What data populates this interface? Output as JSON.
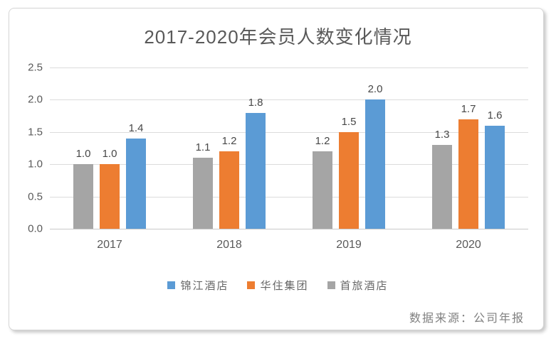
{
  "chart_data": {
    "type": "bar",
    "title": "2017-2020年会员人数变化情况",
    "categories": [
      "2017",
      "2018",
      "2019",
      "2020"
    ],
    "series": [
      {
        "name": "首旅酒店",
        "color": "#A5A5A5",
        "values": [
          1.0,
          1.1,
          1.2,
          1.3
        ]
      },
      {
        "name": "华住集团",
        "color": "#ED7D31",
        "values": [
          1.0,
          1.2,
          1.5,
          1.7
        ]
      },
      {
        "name": "锦江酒店",
        "color": "#5B9BD5",
        "values": [
          1.4,
          1.8,
          2.0,
          1.6
        ]
      }
    ],
    "legend": [
      {
        "name": "锦江酒店",
        "color": "#5B9BD5"
      },
      {
        "name": "华住集团",
        "color": "#ED7D31"
      },
      {
        "name": "首旅酒店",
        "color": "#A5A5A5"
      }
    ],
    "y_ticks": [
      "0.0",
      "0.5",
      "1.0",
      "1.5",
      "2.0",
      "2.5"
    ],
    "ylim": [
      0,
      2.5
    ],
    "grid": true,
    "legend_position": "bottom",
    "xlabel": "",
    "ylabel": ""
  },
  "source_note": "数据来源：公司年报",
  "colors": {
    "grid": "#dcdcdc",
    "axis_line": "#c9c9c9",
    "title_text": "#595959",
    "tick_text": "#595959",
    "value_text": "#474747",
    "source_text": "#7f7f7f"
  }
}
